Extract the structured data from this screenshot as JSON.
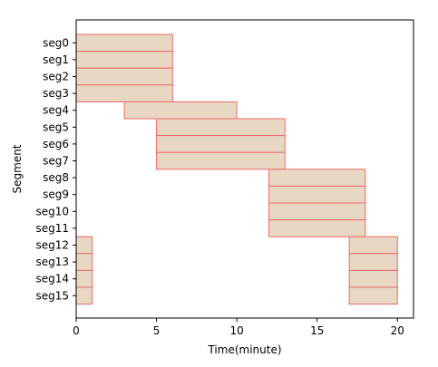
{
  "chart_data": {
    "type": "gantt",
    "title": "",
    "xlabel": "Time(minute)",
    "ylabel": "Segment",
    "xlim": [
      0,
      21
    ],
    "xticks": [
      0,
      5,
      10,
      15,
      20
    ],
    "grid": false,
    "colors": {
      "fill": "#e8d8c3",
      "edge": "#f06a64",
      "axis": "#000000"
    },
    "rows": [
      {
        "label": "seg0",
        "start": 0,
        "end": 6
      },
      {
        "label": "seg1",
        "start": 0,
        "end": 6
      },
      {
        "label": "seg2",
        "start": 0,
        "end": 6
      },
      {
        "label": "seg3",
        "start": 0,
        "end": 6
      },
      {
        "label": "seg4",
        "start": 3,
        "end": 10
      },
      {
        "label": "seg5",
        "start": 5,
        "end": 13
      },
      {
        "label": "seg6",
        "start": 5,
        "end": 13
      },
      {
        "label": "seg7",
        "start": 5,
        "end": 13
      },
      {
        "label": "seg8",
        "start": 12,
        "end": 18
      },
      {
        "label": "seg9",
        "start": 12,
        "end": 18
      },
      {
        "label": "seg10",
        "start": 12,
        "end": 18
      },
      {
        "label": "seg11",
        "start": 12,
        "end": 18
      },
      {
        "label": "seg12",
        "segments": [
          [
            0,
            1
          ],
          [
            17,
            20
          ]
        ]
      },
      {
        "label": "seg13",
        "segments": [
          [
            0,
            1
          ],
          [
            17,
            20
          ]
        ]
      },
      {
        "label": "seg14",
        "segments": [
          [
            0,
            1
          ],
          [
            17,
            20
          ]
        ]
      },
      {
        "label": "seg15",
        "segments": [
          [
            0,
            1
          ],
          [
            17,
            20
          ]
        ]
      }
    ]
  }
}
